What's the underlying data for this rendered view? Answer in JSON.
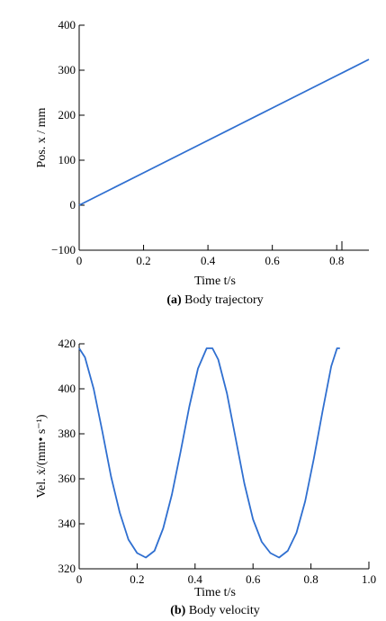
{
  "chart_data": [
    {
      "type": "line",
      "title": "",
      "caption_tag": "(a)",
      "caption_text": "Body trajectory",
      "xlabel": "Time t/s",
      "ylabel": "Pos. x / mm",
      "xlim": [
        0,
        0.9
      ],
      "ylim": [
        -100,
        400
      ],
      "xticks": [
        0,
        0.2,
        0.4,
        0.6,
        0.8
      ],
      "xtick_labels": [
        "0",
        "0.2",
        "0.4",
        "0.6",
        "0.8"
      ],
      "yticks": [
        -100,
        0,
        100,
        200,
        300,
        400
      ],
      "ytick_labels": [
        "−100",
        "0",
        "100",
        "200",
        "300",
        "400"
      ],
      "grid": false,
      "line_color": "#2f6fd0",
      "series": [
        {
          "x": [
            0,
            0.1,
            0.2,
            0.3,
            0.4,
            0.5,
            0.6,
            0.7,
            0.8,
            0.9
          ],
          "y": [
            0,
            36,
            72,
            108,
            144,
            180,
            216,
            252,
            288,
            324
          ]
        }
      ]
    },
    {
      "type": "line",
      "title": "",
      "caption_tag": "(b)",
      "caption_text": "Body velocity",
      "xlabel": "Time t/s",
      "ylabel": "Vel. ẋ/(mm• s⁻¹)",
      "xlim": [
        0,
        1.0
      ],
      "ylim": [
        320,
        420
      ],
      "xticks": [
        0,
        0.2,
        0.4,
        0.6,
        0.8,
        1.0
      ],
      "xtick_labels": [
        "0",
        "0.2",
        "0.4",
        "0.6",
        "0.8",
        "1.0"
      ],
      "yticks": [
        320,
        340,
        360,
        380,
        400,
        420
      ],
      "ytick_labels": [
        "320",
        "340",
        "360",
        "380",
        "400",
        "420"
      ],
      "grid": false,
      "line_color": "#2f6fd0",
      "series": [
        {
          "x": [
            0,
            0.02,
            0.05,
            0.08,
            0.11,
            0.14,
            0.17,
            0.2,
            0.23,
            0.26,
            0.29,
            0.32,
            0.35,
            0.38,
            0.41,
            0.44,
            0.46,
            0.48,
            0.51,
            0.54,
            0.57,
            0.6,
            0.63,
            0.66,
            0.69,
            0.72,
            0.75,
            0.78,
            0.81,
            0.84,
            0.87,
            0.89,
            0.9
          ],
          "y": [
            418,
            414,
            400,
            381,
            361,
            345,
            333,
            327,
            325,
            328,
            338,
            353,
            372,
            392,
            409,
            418,
            418,
            413,
            398,
            378,
            358,
            342,
            332,
            327,
            325,
            328,
            336,
            350,
            369,
            390,
            410,
            418,
            418
          ]
        }
      ]
    }
  ]
}
